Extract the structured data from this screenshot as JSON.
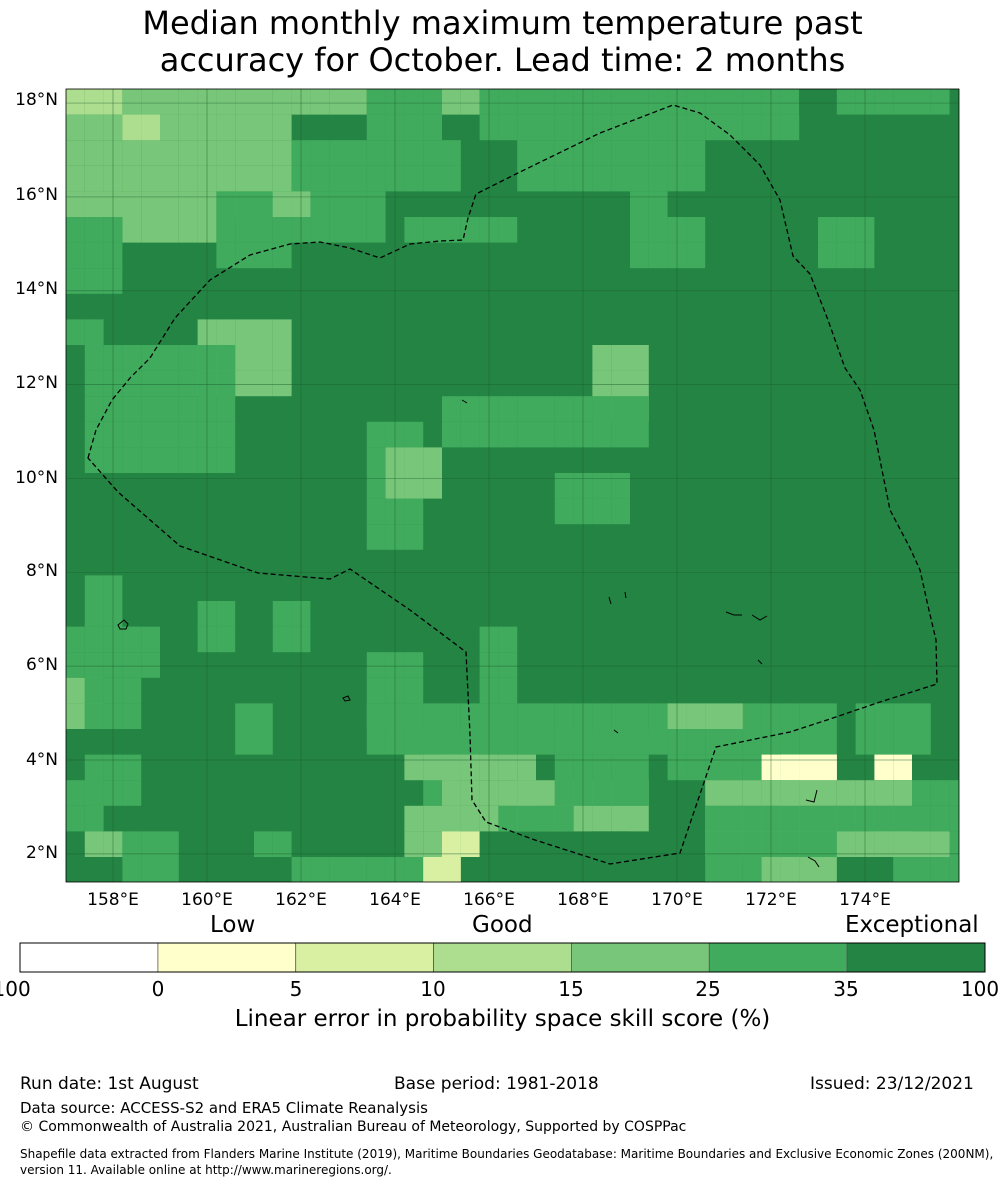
{
  "title": {
    "line1": "Median monthly maximum temperature past",
    "line2": "accuracy for October. Lead time: 2 months"
  },
  "map": {
    "lat_labels": [
      "18°N",
      "16°N",
      "14°N",
      "12°N",
      "10°N",
      "8°N",
      "6°N",
      "4°N",
      "2°N"
    ],
    "lon_labels": [
      "158°E",
      "160°E",
      "162°E",
      "164°E",
      "166°E",
      "168°E",
      "170°E",
      "172°E",
      "174°E"
    ],
    "lon_range": [
      157.0,
      176.0
    ],
    "lat_range": [
      1.4,
      18.3
    ],
    "grid_lines": true,
    "cell_legend_index": [
      [
        3,
        3,
        4,
        4,
        4,
        4,
        4,
        4,
        5,
        5,
        5,
        5,
        3,
        4,
        5,
        5,
        5,
        5,
        5,
        5,
        5,
        5,
        5,
        5,
        5,
        6,
        6,
        5,
        5,
        5,
        5,
        5,
        5,
        5,
        5,
        5,
        5,
        5,
        5,
        5,
        5,
        5,
        5,
        5,
        5,
        5,
        5,
        5,
        5
      ],
      [
        3,
        3,
        4,
        4,
        4,
        4,
        4,
        4,
        5,
        5,
        5,
        5,
        3,
        4,
        5,
        5,
        5,
        5,
        5,
        5,
        5,
        5,
        5,
        5,
        5,
        6,
        6,
        5,
        5,
        5,
        5,
        5,
        5,
        5,
        5,
        5,
        5,
        5,
        5,
        5,
        5,
        5,
        5,
        5,
        5,
        5,
        5,
        5,
        5
      ],
      [
        4,
        4,
        4,
        4,
        4,
        4,
        4,
        4,
        4,
        4,
        4,
        4,
        4,
        4,
        4,
        4,
        5,
        5,
        5,
        5,
        5,
        5,
        5,
        5,
        5,
        5,
        5,
        5,
        5,
        5,
        5,
        5,
        5,
        5,
        5,
        5,
        5,
        5,
        5,
        5,
        5,
        5,
        5,
        5,
        5,
        5,
        5,
        5,
        5
      ],
      [
        4,
        4,
        4,
        4,
        4,
        4,
        4,
        4,
        4,
        4,
        4,
        4,
        4,
        4,
        4,
        4,
        5,
        5,
        5,
        5,
        5,
        5,
        5,
        5,
        5,
        5,
        5,
        5,
        5,
        5,
        5,
        5,
        5,
        5,
        5,
        5,
        5,
        5,
        5,
        5,
        5,
        5,
        5,
        5,
        5,
        5,
        5,
        5,
        5
      ],
      [
        4,
        4,
        4,
        4,
        4,
        4,
        4,
        4,
        4,
        4,
        4,
        4,
        4,
        4,
        4,
        4,
        5,
        5,
        5,
        5,
        5,
        5,
        5,
        5,
        5,
        5,
        5,
        5,
        5,
        5,
        5,
        5,
        5,
        5,
        5,
        5,
        5,
        5,
        5,
        5,
        5,
        5,
        5,
        5,
        5,
        5,
        5,
        5,
        5
      ]
    ]
  },
  "legend": {
    "qualitative": [
      "Low",
      "Good",
      "Exceptional"
    ],
    "ticks": [
      "-100",
      "0",
      "5",
      "10",
      "15",
      "25",
      "35",
      "100"
    ],
    "colors": [
      "#ffffff",
      "#ffffcc",
      "#d9f0a3",
      "#addd8e",
      "#78c679",
      "#41ab5d",
      "#238443"
    ],
    "label": "Linear error in probability space skill score (%)"
  },
  "footer": {
    "run_date": "Run date: 1st August",
    "base_period": "Base period: 1981-2018",
    "issued": "Issued: 23/12/2021",
    "data_source": "Data source: ACCESS-S2 and ERA5 Climate Reanalysis",
    "copyright": "© Commonwealth of Australia 2021, Australian Bureau of Meteorology, Supported by COSPPac",
    "shapefile_line1": "Shapefile data extracted from Flanders Marine Institute (2019), Maritime Boundaries Geodatabase: Maritime Boundaries and Exclusive Economic Zones (200NM),",
    "shapefile_line2": "version 11. Available online at http://www.marineregions.org/."
  }
}
